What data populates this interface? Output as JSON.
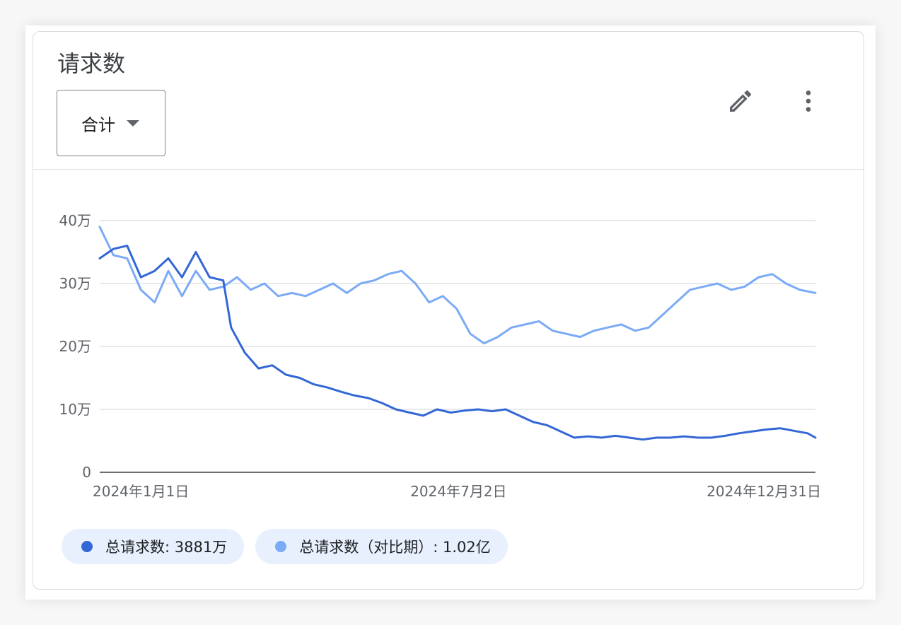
{
  "card": {
    "title": "请求数",
    "aggregation_label": "合计",
    "edit_icon": "pencil-icon",
    "more_icon": "more-vert-icon"
  },
  "colors": {
    "current": "#3367d6",
    "comparison": "#7baaf7",
    "grid": "#dadce0",
    "axis": "#3c4043",
    "chip_bg": "#e8f0fe"
  },
  "legend": [
    {
      "label": "总请求数: 3881万",
      "color": "#3367d6"
    },
    {
      "label": "总请求数（对比期）: 1.02亿",
      "color": "#7baaf7"
    }
  ],
  "chart_data": {
    "type": "line",
    "title": "请求数",
    "xlabel": "",
    "ylabel": "",
    "ylim": [
      0,
      400000
    ],
    "yticks": [
      0,
      100000,
      200000,
      300000,
      400000
    ],
    "ytick_labels": [
      "0",
      "10万",
      "20万",
      "30万",
      "40万"
    ],
    "xticks": [
      "2024-01-01",
      "2024-07-02",
      "2024-12-31"
    ],
    "xtick_labels": [
      "2024年1月1日",
      "2024年7月2日",
      "2024年12月31日"
    ],
    "grid": true,
    "legend_position": "bottom-left",
    "x_start": "2024-01-01",
    "x_end": "2024-12-31",
    "series": [
      {
        "name": "总请求数",
        "color": "#3367d6",
        "points": [
          [
            "2024-01-01",
            340000
          ],
          [
            "2024-01-08",
            355000
          ],
          [
            "2024-01-15",
            360000
          ],
          [
            "2024-01-22",
            310000
          ],
          [
            "2024-01-29",
            320000
          ],
          [
            "2024-02-05",
            340000
          ],
          [
            "2024-02-12",
            310000
          ],
          [
            "2024-02-19",
            350000
          ],
          [
            "2024-02-26",
            310000
          ],
          [
            "2024-03-04",
            305000
          ],
          [
            "2024-03-08",
            230000
          ],
          [
            "2024-03-15",
            190000
          ],
          [
            "2024-03-22",
            165000
          ],
          [
            "2024-03-29",
            170000
          ],
          [
            "2024-04-05",
            155000
          ],
          [
            "2024-04-12",
            150000
          ],
          [
            "2024-04-19",
            140000
          ],
          [
            "2024-04-26",
            135000
          ],
          [
            "2024-05-03",
            128000
          ],
          [
            "2024-05-10",
            122000
          ],
          [
            "2024-05-17",
            118000
          ],
          [
            "2024-05-24",
            110000
          ],
          [
            "2024-05-31",
            100000
          ],
          [
            "2024-06-07",
            95000
          ],
          [
            "2024-06-14",
            90000
          ],
          [
            "2024-06-21",
            100000
          ],
          [
            "2024-06-28",
            95000
          ],
          [
            "2024-07-05",
            98000
          ],
          [
            "2024-07-12",
            100000
          ],
          [
            "2024-07-19",
            97000
          ],
          [
            "2024-07-26",
            100000
          ],
          [
            "2024-08-02",
            90000
          ],
          [
            "2024-08-09",
            80000
          ],
          [
            "2024-08-16",
            75000
          ],
          [
            "2024-08-23",
            65000
          ],
          [
            "2024-08-30",
            55000
          ],
          [
            "2024-09-06",
            57000
          ],
          [
            "2024-09-13",
            55000
          ],
          [
            "2024-09-20",
            58000
          ],
          [
            "2024-09-27",
            55000
          ],
          [
            "2024-10-04",
            52000
          ],
          [
            "2024-10-11",
            55000
          ],
          [
            "2024-10-18",
            55000
          ],
          [
            "2024-10-25",
            57000
          ],
          [
            "2024-11-01",
            55000
          ],
          [
            "2024-11-08",
            55000
          ],
          [
            "2024-11-15",
            58000
          ],
          [
            "2024-11-22",
            62000
          ],
          [
            "2024-11-29",
            65000
          ],
          [
            "2024-12-06",
            68000
          ],
          [
            "2024-12-13",
            70000
          ],
          [
            "2024-12-20",
            66000
          ],
          [
            "2024-12-27",
            62000
          ],
          [
            "2024-12-31",
            55000
          ]
        ]
      },
      {
        "name": "总请求数（对比期）",
        "color": "#7baaf7",
        "points": [
          [
            "2024-01-01",
            390000
          ],
          [
            "2024-01-08",
            345000
          ],
          [
            "2024-01-15",
            340000
          ],
          [
            "2024-01-22",
            290000
          ],
          [
            "2024-01-29",
            270000
          ],
          [
            "2024-02-05",
            320000
          ],
          [
            "2024-02-12",
            280000
          ],
          [
            "2024-02-19",
            320000
          ],
          [
            "2024-02-26",
            290000
          ],
          [
            "2024-03-04",
            295000
          ],
          [
            "2024-03-11",
            310000
          ],
          [
            "2024-03-18",
            290000
          ],
          [
            "2024-03-25",
            300000
          ],
          [
            "2024-04-01",
            280000
          ],
          [
            "2024-04-08",
            285000
          ],
          [
            "2024-04-15",
            280000
          ],
          [
            "2024-04-22",
            290000
          ],
          [
            "2024-04-29",
            300000
          ],
          [
            "2024-05-06",
            285000
          ],
          [
            "2024-05-13",
            300000
          ],
          [
            "2024-05-20",
            305000
          ],
          [
            "2024-05-27",
            315000
          ],
          [
            "2024-06-03",
            320000
          ],
          [
            "2024-06-10",
            300000
          ],
          [
            "2024-06-17",
            270000
          ],
          [
            "2024-06-24",
            280000
          ],
          [
            "2024-07-01",
            260000
          ],
          [
            "2024-07-08",
            220000
          ],
          [
            "2024-07-15",
            205000
          ],
          [
            "2024-07-22",
            215000
          ],
          [
            "2024-07-29",
            230000
          ],
          [
            "2024-08-05",
            235000
          ],
          [
            "2024-08-12",
            240000
          ],
          [
            "2024-08-19",
            225000
          ],
          [
            "2024-08-26",
            220000
          ],
          [
            "2024-09-02",
            215000
          ],
          [
            "2024-09-09",
            225000
          ],
          [
            "2024-09-16",
            230000
          ],
          [
            "2024-09-23",
            235000
          ],
          [
            "2024-09-30",
            225000
          ],
          [
            "2024-10-07",
            230000
          ],
          [
            "2024-10-14",
            250000
          ],
          [
            "2024-10-21",
            270000
          ],
          [
            "2024-10-28",
            290000
          ],
          [
            "2024-11-04",
            295000
          ],
          [
            "2024-11-11",
            300000
          ],
          [
            "2024-11-18",
            290000
          ],
          [
            "2024-11-25",
            295000
          ],
          [
            "2024-12-02",
            310000
          ],
          [
            "2024-12-09",
            315000
          ],
          [
            "2024-12-16",
            300000
          ],
          [
            "2024-12-23",
            290000
          ],
          [
            "2024-12-31",
            285000
          ]
        ]
      }
    ]
  }
}
